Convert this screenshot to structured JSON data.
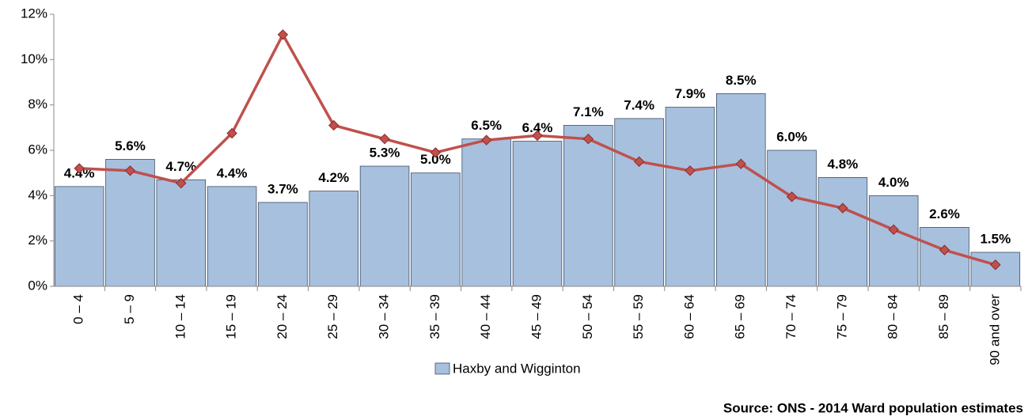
{
  "chart_data": {
    "type": "bar",
    "categories": [
      "0 – 4",
      "5 – 9",
      "10 – 14",
      "15 – 19",
      "20 – 24",
      "25 – 29",
      "30 – 34",
      "35 – 39",
      "40 – 44",
      "45 – 49",
      "50 – 54",
      "55 – 59",
      "60 – 64",
      "65 – 69",
      "70 – 74",
      "75 – 79",
      "80 – 84",
      "85 – 89",
      "90 and over"
    ],
    "series": [
      {
        "name": "Haxby and Wigginton",
        "type": "bar",
        "color": "#a7c0de",
        "values": [
          4.4,
          5.6,
          4.7,
          4.4,
          3.7,
          4.2,
          5.3,
          5.0,
          6.5,
          6.4,
          7.1,
          7.4,
          7.9,
          8.5,
          6.0,
          4.8,
          4.0,
          2.6,
          1.5
        ],
        "value_labels": [
          "4.4%",
          "5.6%",
          "4.7%",
          "4.4%",
          "3.7%",
          "4.2%",
          "5.3%",
          "5.0%",
          "6.5%",
          "6.4%",
          "7.1%",
          "7.4%",
          "7.9%",
          "8.5%",
          "6.0%",
          "4.8%",
          "4.0%",
          "2.6%",
          "1.5%"
        ]
      },
      {
        "type": "line",
        "color": "#c0504d",
        "values": [
          5.2,
          5.1,
          4.55,
          6.75,
          11.1,
          7.1,
          6.5,
          5.9,
          6.45,
          6.65,
          6.5,
          5.5,
          5.1,
          5.4,
          3.95,
          3.45,
          2.5,
          1.6,
          0.95
        ]
      }
    ],
    "ylim": [
      0,
      12
    ],
    "yticks": [
      {
        "value": 0,
        "label": "0%"
      },
      {
        "value": 2,
        "label": "2%"
      },
      {
        "value": 4,
        "label": "4%"
      },
      {
        "value": 6,
        "label": "6%"
      },
      {
        "value": 8,
        "label": "8%"
      },
      {
        "value": 10,
        "label": "10%"
      },
      {
        "value": 12,
        "label": "12%"
      }
    ],
    "source": "Source: ONS - 2014 Ward population estimates",
    "legend": "bottom"
  }
}
